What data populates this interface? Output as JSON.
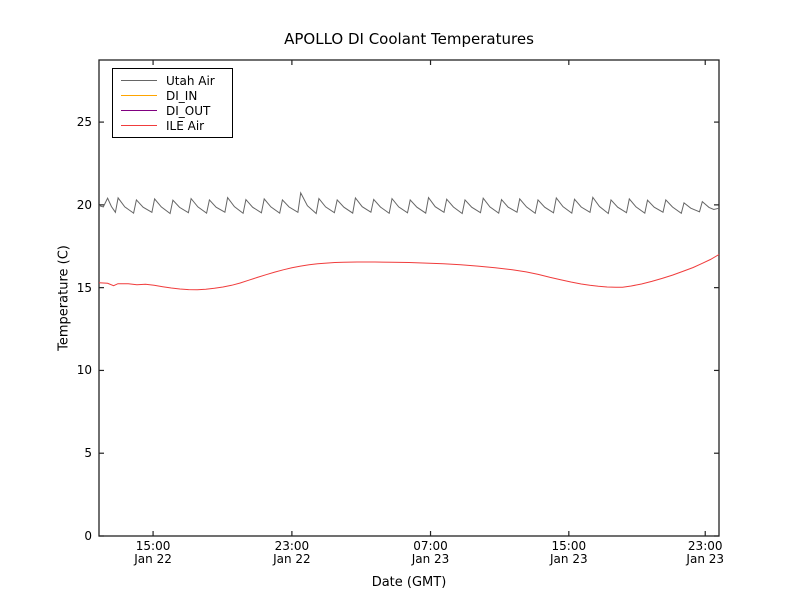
{
  "chart_data": {
    "type": "line",
    "title": "APOLLO DI Coolant Temperatures",
    "xlabel": "Date (GMT)",
    "ylabel": "Temperature (C)",
    "x_unit": "hours since Jan 22 12:00 GMT",
    "xlim": [
      0,
      36
    ],
    "ylim": [
      0,
      28.75
    ],
    "grid": false,
    "legend_position": "upper left",
    "y_ticks": [
      0,
      5,
      10,
      15,
      20,
      25
    ],
    "x_ticks": [
      {
        "t": 3.14,
        "time": "15:00",
        "date": "Jan 22"
      },
      {
        "t": 11.2,
        "time": "23:00",
        "date": "Jan 22"
      },
      {
        "t": 19.25,
        "time": "07:00",
        "date": "Jan 23"
      },
      {
        "t": 27.28,
        "time": "15:00",
        "date": "Jan 23"
      },
      {
        "t": 35.2,
        "time": "23:00",
        "date": "Jan 23"
      }
    ],
    "series": [
      {
        "name": "Utah Air",
        "color": "#666666",
        "points": [
          [
            0,
            19.95
          ],
          [
            0.25,
            19.88
          ],
          [
            0.5,
            20.4
          ],
          [
            0.72,
            19.9
          ],
          [
            0.95,
            19.55
          ],
          [
            1.11,
            20.42
          ],
          [
            1.5,
            19.88
          ],
          [
            2.01,
            19.5
          ],
          [
            2.17,
            20.3
          ],
          [
            2.56,
            19.86
          ],
          [
            3.07,
            19.55
          ],
          [
            3.23,
            20.36
          ],
          [
            3.62,
            19.88
          ],
          [
            4.13,
            19.48
          ],
          [
            4.29,
            20.28
          ],
          [
            4.68,
            19.85
          ],
          [
            5.19,
            19.53
          ],
          [
            5.35,
            20.38
          ],
          [
            5.74,
            19.88
          ],
          [
            6.25,
            19.5
          ],
          [
            6.41,
            20.3
          ],
          [
            6.8,
            19.86
          ],
          [
            7.31,
            19.56
          ],
          [
            7.47,
            20.44
          ],
          [
            7.86,
            19.89
          ],
          [
            8.37,
            19.49
          ],
          [
            8.53,
            20.32
          ],
          [
            8.92,
            19.86
          ],
          [
            9.43,
            19.52
          ],
          [
            9.59,
            20.36
          ],
          [
            9.98,
            19.88
          ],
          [
            10.49,
            19.5
          ],
          [
            10.65,
            20.3
          ],
          [
            11.04,
            19.87
          ],
          [
            11.55,
            19.55
          ],
          [
            11.71,
            20.72
          ],
          [
            12.1,
            19.95
          ],
          [
            12.61,
            19.48
          ],
          [
            12.77,
            20.38
          ],
          [
            13.16,
            19.88
          ],
          [
            13.67,
            19.53
          ],
          [
            13.83,
            20.3
          ],
          [
            14.22,
            19.86
          ],
          [
            14.73,
            19.5
          ],
          [
            14.89,
            20.42
          ],
          [
            15.28,
            19.89
          ],
          [
            15.79,
            19.56
          ],
          [
            15.95,
            20.33
          ],
          [
            16.34,
            19.87
          ],
          [
            16.85,
            19.49
          ],
          [
            17.01,
            20.38
          ],
          [
            17.4,
            19.88
          ],
          [
            17.91,
            19.52
          ],
          [
            18.07,
            20.3
          ],
          [
            18.46,
            19.86
          ],
          [
            18.97,
            19.5
          ],
          [
            19.13,
            20.44
          ],
          [
            19.52,
            19.89
          ],
          [
            20.03,
            19.55
          ],
          [
            20.19,
            20.34
          ],
          [
            20.58,
            19.87
          ],
          [
            21.09,
            19.48
          ],
          [
            21.25,
            20.3
          ],
          [
            21.64,
            19.86
          ],
          [
            22.15,
            19.53
          ],
          [
            22.31,
            20.4
          ],
          [
            22.7,
            19.88
          ],
          [
            23.21,
            19.5
          ],
          [
            23.37,
            20.32
          ],
          [
            23.76,
            19.86
          ],
          [
            24.27,
            19.56
          ],
          [
            24.43,
            20.36
          ],
          [
            24.82,
            19.88
          ],
          [
            25.33,
            19.49
          ],
          [
            25.49,
            20.3
          ],
          [
            25.88,
            19.86
          ],
          [
            26.39,
            19.52
          ],
          [
            26.55,
            20.42
          ],
          [
            26.94,
            19.89
          ],
          [
            27.45,
            19.5
          ],
          [
            27.61,
            20.34
          ],
          [
            28,
            19.87
          ],
          [
            28.51,
            19.55
          ],
          [
            28.67,
            20.46
          ],
          [
            29.06,
            19.9
          ],
          [
            29.57,
            19.48
          ],
          [
            29.73,
            20.3
          ],
          [
            30.12,
            19.86
          ],
          [
            30.63,
            19.53
          ],
          [
            30.79,
            20.36
          ],
          [
            31.18,
            19.88
          ],
          [
            31.69,
            19.5
          ],
          [
            31.85,
            20.28
          ],
          [
            32.24,
            19.86
          ],
          [
            32.75,
            19.56
          ],
          [
            32.91,
            20.3
          ],
          [
            33.3,
            19.87
          ],
          [
            33.81,
            19.49
          ],
          [
            33.97,
            20.12
          ],
          [
            34.36,
            19.8
          ],
          [
            34.87,
            19.58
          ],
          [
            35.03,
            20.2
          ],
          [
            35.42,
            19.85
          ],
          [
            35.7,
            19.72
          ],
          [
            36,
            19.8
          ]
        ]
      },
      {
        "name": "DI_IN",
        "color": "#ffa500",
        "points": []
      },
      {
        "name": "DI_OUT",
        "color": "#800080",
        "points": []
      },
      {
        "name": "ILE Air",
        "color": "#f03c3c",
        "points": [
          [
            0,
            15.3
          ],
          [
            0.5,
            15.26
          ],
          [
            0.85,
            15.12
          ],
          [
            1.1,
            15.24
          ],
          [
            1.7,
            15.24
          ],
          [
            2.2,
            15.18
          ],
          [
            2.7,
            15.2
          ],
          [
            3.2,
            15.14
          ],
          [
            3.7,
            15.06
          ],
          [
            4.2,
            14.98
          ],
          [
            4.7,
            14.92
          ],
          [
            5.2,
            14.88
          ],
          [
            5.7,
            14.87
          ],
          [
            6.2,
            14.9
          ],
          [
            6.7,
            14.96
          ],
          [
            7.2,
            15.04
          ],
          [
            7.7,
            15.14
          ],
          [
            8.2,
            15.28
          ],
          [
            8.7,
            15.45
          ],
          [
            9.2,
            15.62
          ],
          [
            9.7,
            15.78
          ],
          [
            10.2,
            15.94
          ],
          [
            10.7,
            16.08
          ],
          [
            11.2,
            16.2
          ],
          [
            11.7,
            16.3
          ],
          [
            12.2,
            16.38
          ],
          [
            12.7,
            16.44
          ],
          [
            13.2,
            16.48
          ],
          [
            13.7,
            16.52
          ],
          [
            14.2,
            16.54
          ],
          [
            15,
            16.55
          ],
          [
            16,
            16.55
          ],
          [
            17,
            16.54
          ],
          [
            18,
            16.52
          ],
          [
            19,
            16.48
          ],
          [
            20,
            16.44
          ],
          [
            21,
            16.38
          ],
          [
            22,
            16.3
          ],
          [
            23,
            16.2
          ],
          [
            24,
            16.08
          ],
          [
            24.8,
            15.95
          ],
          [
            25.5,
            15.8
          ],
          [
            26.2,
            15.62
          ],
          [
            26.8,
            15.48
          ],
          [
            27.4,
            15.34
          ],
          [
            28,
            15.22
          ],
          [
            28.5,
            15.14
          ],
          [
            29,
            15.08
          ],
          [
            29.5,
            15.04
          ],
          [
            30,
            15.02
          ],
          [
            30.4,
            15.03
          ],
          [
            30.9,
            15.1
          ],
          [
            31.5,
            15.22
          ],
          [
            32.1,
            15.38
          ],
          [
            32.7,
            15.56
          ],
          [
            33.3,
            15.76
          ],
          [
            33.9,
            15.98
          ],
          [
            34.5,
            16.22
          ],
          [
            35,
            16.45
          ],
          [
            35.5,
            16.7
          ],
          [
            36,
            17.0
          ]
        ]
      }
    ]
  }
}
